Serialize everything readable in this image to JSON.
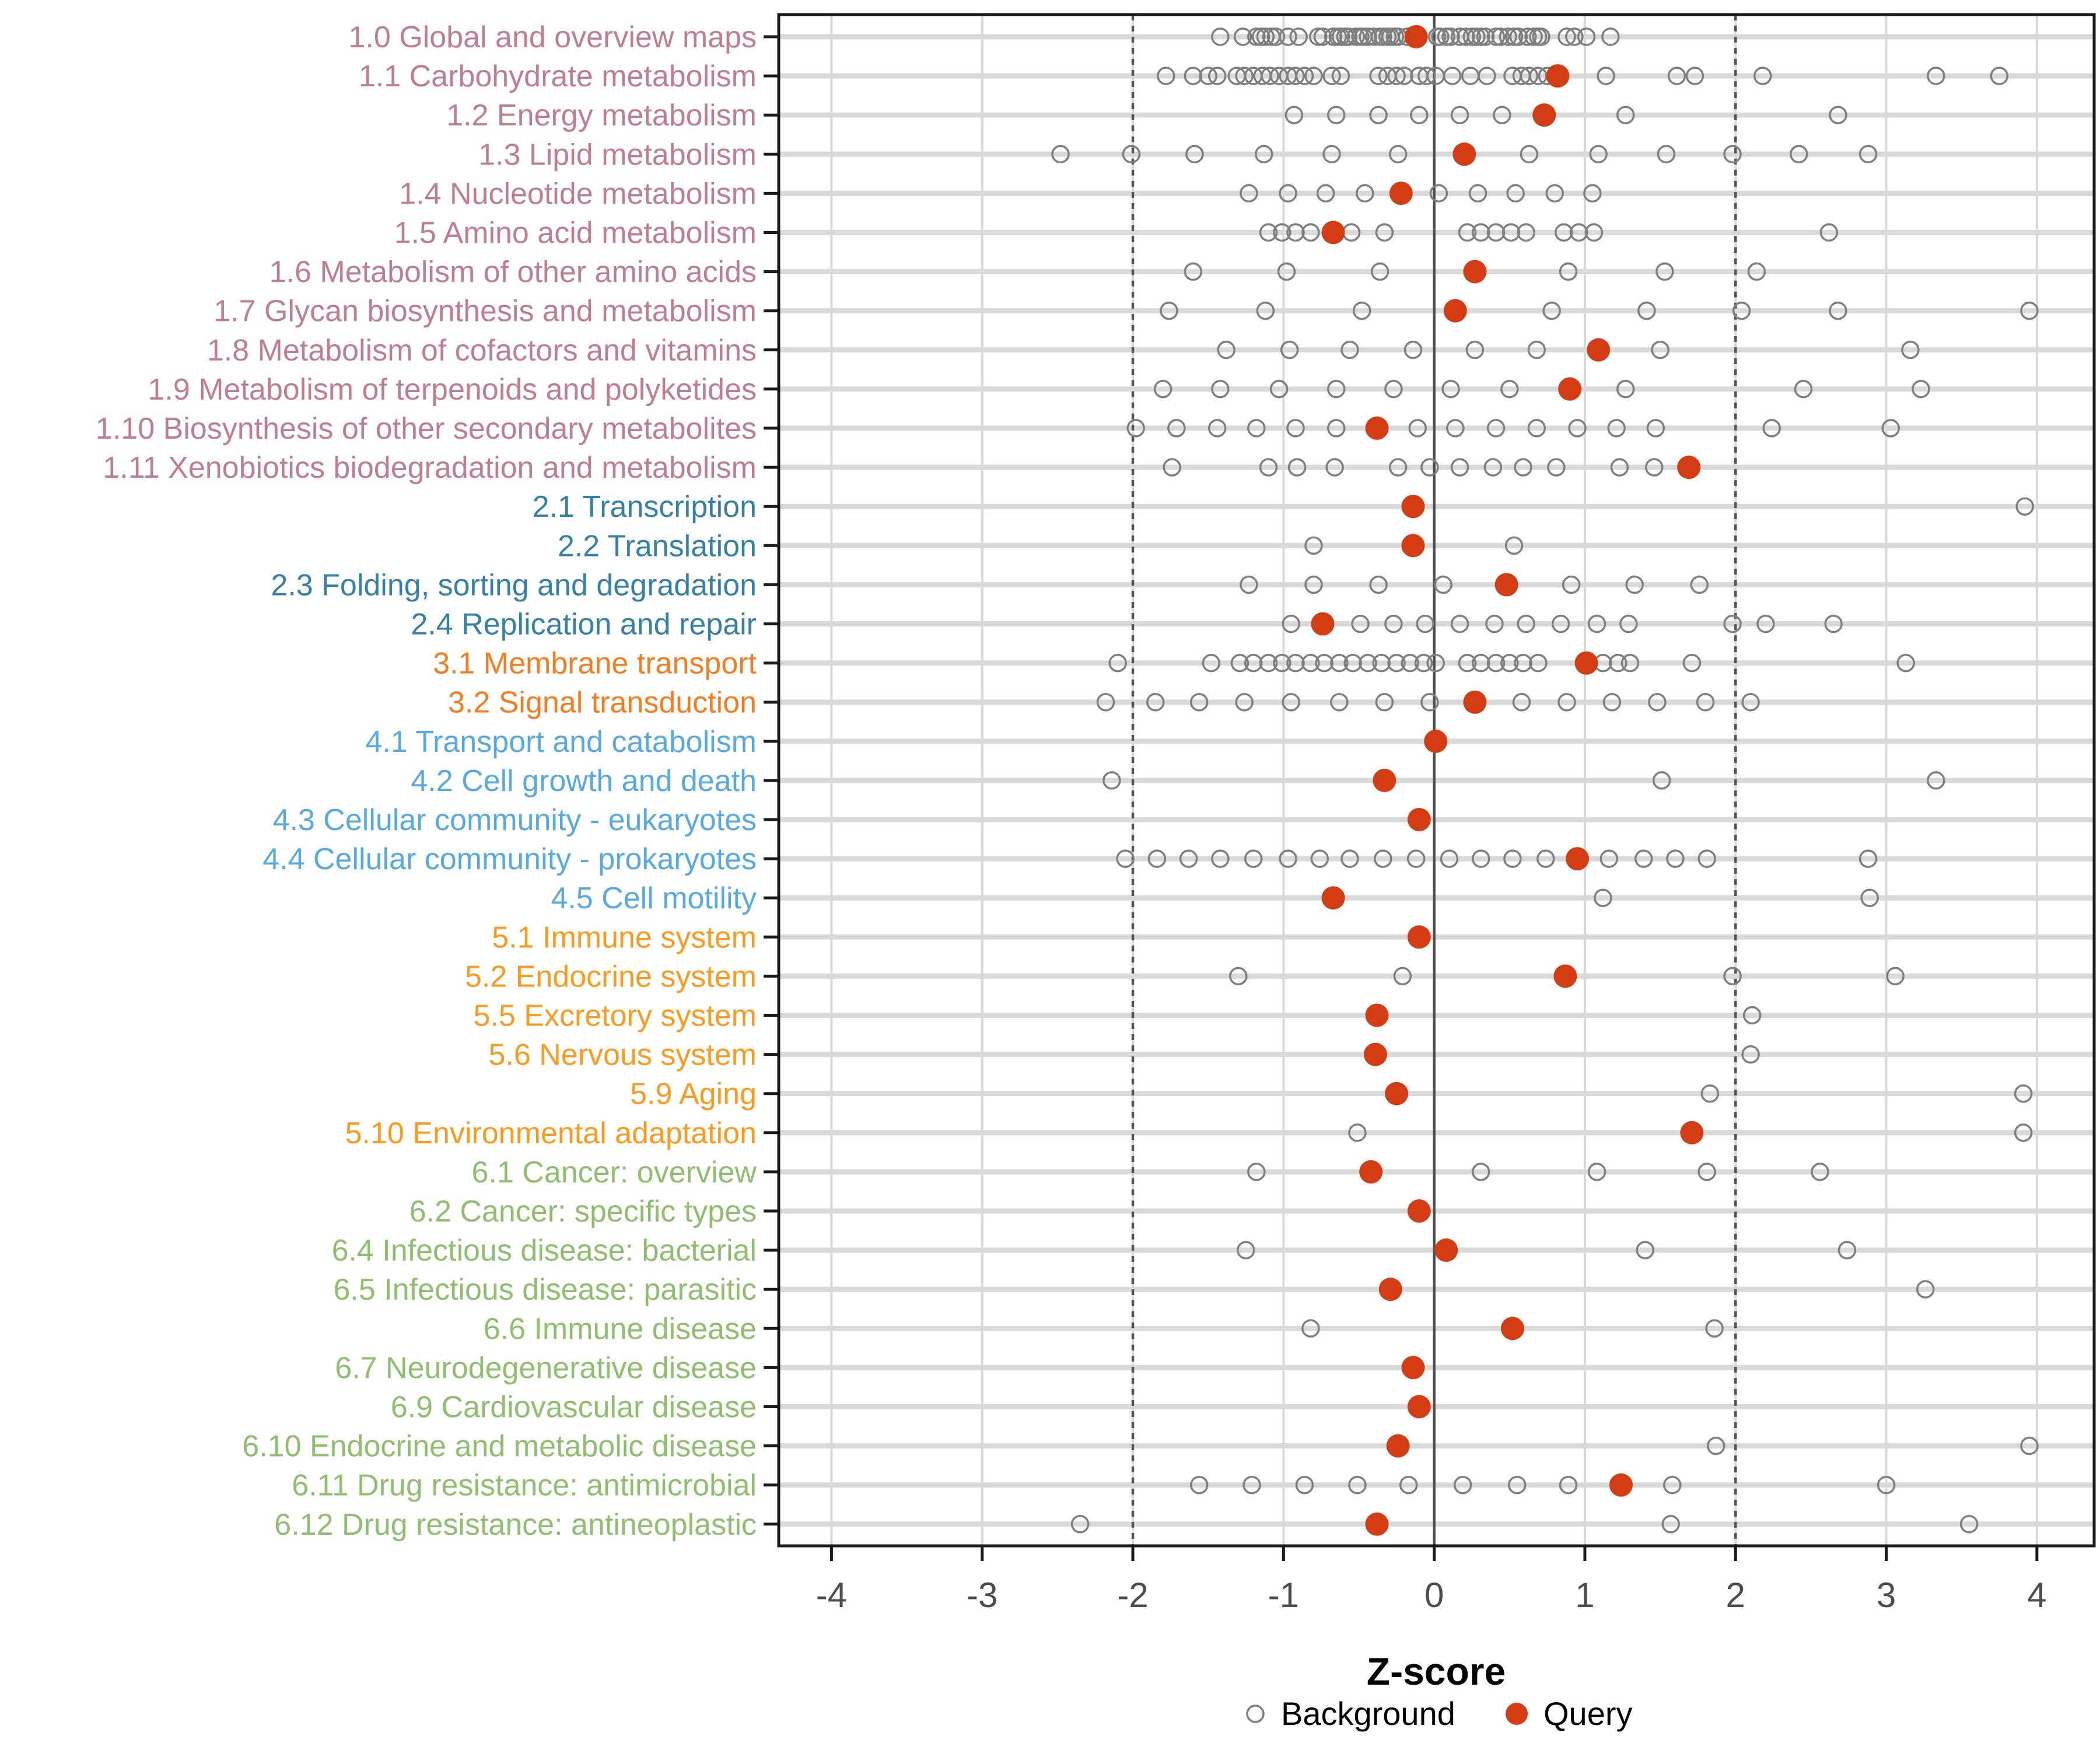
{
  "chart_data": {
    "type": "scatter",
    "orientation": "horizontal-strip",
    "xlabel": "Z-score",
    "x_ticks": [
      -4,
      -3,
      -2,
      -1,
      0,
      1,
      2,
      3,
      4
    ],
    "xlim": [
      -4.35,
      4.38
    ],
    "grid": true,
    "reference_lines": {
      "solid": [
        0
      ],
      "dotted": [
        -2,
        2
      ]
    },
    "legend": {
      "position": "bottom-center",
      "items": [
        {
          "label": "Background",
          "marker": "open-circle"
        },
        {
          "label": "Query",
          "marker": "filled-circle"
        }
      ]
    },
    "colors": {
      "background_point": "#7F7F7F",
      "query_point": "#D43D13",
      "grid": "#D9D9D9",
      "reference_line": "#555555",
      "axis_text": "#4D4D4D",
      "axis_line": "#1A1A1A",
      "group_1": "#BE7E8E",
      "group_2": "#3580A7",
      "group_3": "#F57D20",
      "group_4": "#57A9E1",
      "group_5": "#FA9A1E",
      "group_6": "#8FBE6E"
    },
    "rows": [
      {
        "label": "1.0 Global and overview maps",
        "group": "1",
        "query": -0.12,
        "background": [
          -1.42,
          -1.27,
          -1.18,
          -1.15,
          -1.12,
          -1.08,
          -1.05,
          -0.97,
          -0.9,
          -0.77,
          -0.74,
          -0.67,
          -0.64,
          -0.62,
          -0.59,
          -0.57,
          -0.52,
          -0.49,
          -0.47,
          -0.44,
          -0.4,
          -0.36,
          -0.34,
          -0.31,
          -0.29,
          -0.26,
          -0.24,
          -0.18,
          0.02,
          0.04,
          0.08,
          0.11,
          0.17,
          0.21,
          0.25,
          0.28,
          0.31,
          0.34,
          0.41,
          0.44,
          0.49,
          0.53,
          0.56,
          0.62,
          0.66,
          0.69,
          0.71,
          0.88,
          0.93,
          1.01,
          1.17
        ]
      },
      {
        "label": "1.1 Carbohydrate metabolism",
        "group": "1",
        "query": 0.82,
        "background": [
          -1.78,
          -1.6,
          -1.5,
          -1.44,
          -1.31,
          -1.26,
          -1.2,
          -1.14,
          -1.09,
          -1.03,
          -0.97,
          -0.92,
          -0.86,
          -0.8,
          -0.68,
          -0.62,
          -0.37,
          -0.31,
          -0.25,
          -0.2,
          -0.1,
          -0.05,
          0.01,
          0.12,
          0.24,
          0.35,
          0.52,
          0.58,
          0.63,
          0.69,
          0.75,
          1.14,
          1.61,
          1.73,
          2.18,
          3.33,
          3.75
        ]
      },
      {
        "label": "1.2 Energy metabolism",
        "group": "1",
        "query": 0.73,
        "background": [
          -0.93,
          -0.65,
          -0.37,
          -0.1,
          0.17,
          0.45,
          1.27,
          2.68
        ]
      },
      {
        "label": "1.3 Lipid metabolism",
        "group": "1",
        "query": 0.2,
        "background": [
          -2.48,
          -2.01,
          -1.59,
          -1.13,
          -0.68,
          -0.24,
          0.63,
          1.09,
          1.54,
          1.98,
          2.42,
          2.88
        ]
      },
      {
        "label": "1.4 Nucleotide metabolism",
        "group": "1",
        "query": -0.22,
        "background": [
          -1.23,
          -0.97,
          -0.72,
          -0.46,
          0.03,
          0.29,
          0.54,
          0.8,
          1.05
        ]
      },
      {
        "label": "1.5 Amino acid metabolism",
        "group": "1",
        "query": -0.67,
        "background": [
          -1.1,
          -1.01,
          -0.92,
          -0.82,
          -0.55,
          -0.33,
          0.22,
          0.31,
          0.41,
          0.51,
          0.61,
          0.86,
          0.96,
          1.06,
          2.62
        ]
      },
      {
        "label": "1.6 Metabolism of other amino acids",
        "group": "1",
        "query": 0.27,
        "background": [
          -1.6,
          -0.98,
          -0.36,
          0.89,
          1.53,
          2.14
        ]
      },
      {
        "label": "1.7 Glycan biosynthesis and metabolism",
        "group": "1",
        "query": 0.14,
        "background": [
          -1.76,
          -1.12,
          -0.48,
          0.78,
          1.41,
          2.04,
          2.68,
          3.95
        ]
      },
      {
        "label": "1.8 Metabolism of cofactors and vitamins",
        "group": "1",
        "query": 1.09,
        "background": [
          -1.38,
          -0.96,
          -0.56,
          -0.14,
          0.27,
          0.68,
          1.5,
          3.16
        ]
      },
      {
        "label": "1.9 Metabolism of terpenoids and polyketides",
        "group": "1",
        "query": 0.9,
        "background": [
          -1.8,
          -1.42,
          -1.03,
          -0.65,
          -0.27,
          0.11,
          0.5,
          1.27,
          2.45,
          3.23
        ]
      },
      {
        "label": "1.10 Biosynthesis of other secondary metabolites",
        "group": "1",
        "query": -0.38,
        "background": [
          -1.98,
          -1.71,
          -1.44,
          -1.18,
          -0.92,
          -0.65,
          -0.11,
          0.14,
          0.41,
          0.68,
          0.95,
          1.21,
          1.47,
          2.24,
          3.03
        ]
      },
      {
        "label": "1.11 Xenobiotics biodegradation and metabolism",
        "group": "1",
        "query": 1.69,
        "background": [
          -1.74,
          -1.1,
          -0.91,
          -0.66,
          -0.24,
          -0.03,
          0.17,
          0.39,
          0.59,
          0.81,
          1.23,
          1.46
        ]
      },
      {
        "label": "2.1 Transcription",
        "group": "2",
        "query": -0.14,
        "background": [
          3.92
        ]
      },
      {
        "label": "2.2 Translation",
        "group": "2",
        "query": -0.14,
        "background": [
          -0.8,
          0.53
        ]
      },
      {
        "label": "2.3 Folding, sorting and degradation",
        "group": "2",
        "query": 0.48,
        "background": [
          -1.23,
          -0.8,
          -0.37,
          0.06,
          0.91,
          1.33,
          1.76
        ]
      },
      {
        "label": "2.4 Replication and repair",
        "group": "2",
        "query": -0.74,
        "background": [
          -0.95,
          -0.49,
          -0.27,
          -0.06,
          0.17,
          0.4,
          0.61,
          0.84,
          1.08,
          1.29,
          1.98,
          2.2,
          2.65
        ]
      },
      {
        "label": "3.1 Membrane transport",
        "group": "3",
        "query": 1.01,
        "background": [
          -2.1,
          -1.48,
          -1.29,
          -1.2,
          -1.1,
          -1.01,
          -0.92,
          -0.82,
          -0.73,
          -0.63,
          -0.54,
          -0.44,
          -0.35,
          -0.25,
          -0.16,
          -0.07,
          0.01,
          0.22,
          0.31,
          0.41,
          0.5,
          0.59,
          0.69,
          1.12,
          1.22,
          1.3,
          1.71,
          3.13
        ]
      },
      {
        "label": "3.2 Signal transduction",
        "group": "3",
        "query": 0.27,
        "background": [
          -2.18,
          -1.85,
          -1.56,
          -1.26,
          -0.95,
          -0.63,
          -0.33,
          -0.03,
          0.58,
          0.88,
          1.18,
          1.48,
          1.8,
          2.1
        ]
      },
      {
        "label": "4.1 Transport and catabolism",
        "group": "4",
        "query": 0.01,
        "background": []
      },
      {
        "label": "4.2 Cell growth and death",
        "group": "4",
        "query": -0.33,
        "background": [
          -2.14,
          1.51,
          3.33
        ]
      },
      {
        "label": "4.3 Cellular community - eukaryotes",
        "group": "4",
        "query": -0.1,
        "background": []
      },
      {
        "label": "4.4 Cellular community - prokaryotes",
        "group": "4",
        "query": 0.95,
        "background": [
          -2.05,
          -1.84,
          -1.63,
          -1.42,
          -1.2,
          -0.97,
          -0.76,
          -0.56,
          -0.34,
          -0.12,
          0.1,
          0.31,
          0.52,
          0.74,
          1.16,
          1.39,
          1.6,
          1.81,
          2.88
        ]
      },
      {
        "label": "4.5 Cell motility",
        "group": "4",
        "query": -0.67,
        "background": [
          1.12,
          2.89
        ]
      },
      {
        "label": "5.1 Immune system",
        "group": "5",
        "query": -0.1,
        "background": []
      },
      {
        "label": "5.2 Endocrine system",
        "group": "5",
        "query": 0.87,
        "background": [
          -1.3,
          -0.21,
          1.98,
          3.06
        ]
      },
      {
        "label": "5.5 Excretory system",
        "group": "5",
        "query": -0.38,
        "background": [
          2.11
        ]
      },
      {
        "label": "5.6 Nervous system",
        "group": "5",
        "query": -0.39,
        "background": [
          2.1
        ]
      },
      {
        "label": "5.9 Aging",
        "group": "5",
        "query": -0.25,
        "background": [
          1.83,
          3.91
        ]
      },
      {
        "label": "5.10 Environmental adaptation",
        "group": "5",
        "query": 1.71,
        "background": [
          -0.51,
          3.91
        ]
      },
      {
        "label": "6.1 Cancer: overview",
        "group": "6",
        "query": -0.42,
        "background": [
          -1.18,
          0.31,
          1.08,
          1.81,
          2.56
        ]
      },
      {
        "label": "6.2 Cancer: specific types",
        "group": "6",
        "query": -0.1,
        "background": []
      },
      {
        "label": "6.4 Infectious disease: bacterial",
        "group": "6",
        "query": 0.08,
        "background": [
          -1.25,
          1.4,
          2.74
        ]
      },
      {
        "label": "6.5 Infectious disease: parasitic",
        "group": "6",
        "query": -0.29,
        "background": [
          3.26
        ]
      },
      {
        "label": "6.6 Immune disease",
        "group": "6",
        "query": 0.52,
        "background": [
          -0.82,
          1.86
        ]
      },
      {
        "label": "6.7 Neurodegenerative disease",
        "group": "6",
        "query": -0.14,
        "background": []
      },
      {
        "label": "6.9 Cardiovascular disease",
        "group": "6",
        "query": -0.1,
        "background": []
      },
      {
        "label": "6.10 Endocrine and metabolic disease",
        "group": "6",
        "query": -0.24,
        "background": [
          1.87,
          3.95
        ]
      },
      {
        "label": "6.11 Drug resistance: antimicrobial",
        "group": "6",
        "query": 1.24,
        "background": [
          -1.56,
          -1.21,
          -0.86,
          -0.51,
          -0.17,
          0.19,
          0.55,
          0.89,
          1.58,
          3.0
        ]
      },
      {
        "label": "6.12 Drug resistance: antineoplastic",
        "group": "6",
        "query": -0.38,
        "background": [
          -2.35,
          1.57,
          3.55
        ]
      }
    ]
  }
}
